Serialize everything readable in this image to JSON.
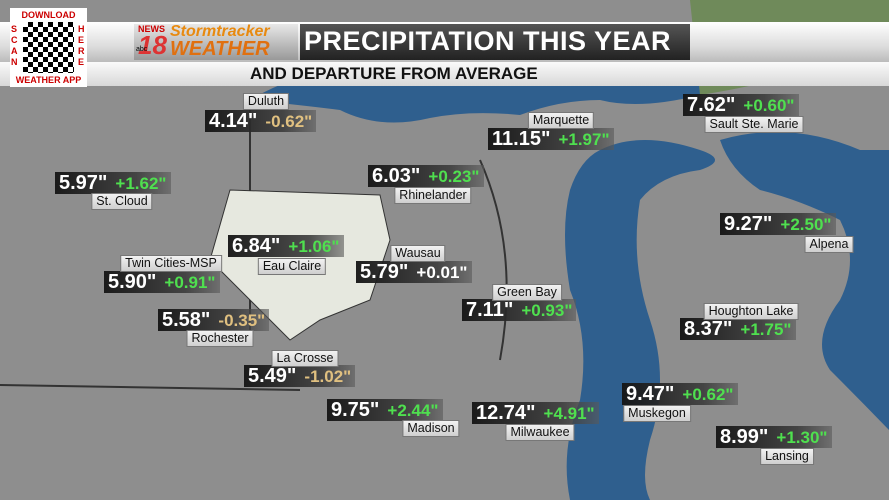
{
  "qr": {
    "top": "DOWNLOAD",
    "left": "SCAN",
    "right": "HERE",
    "bottom": "WEATHER APP"
  },
  "logo": {
    "news": "NEWS",
    "number": "18",
    "network": "abc",
    "brand": "Stormtracker",
    "weather": "WEATHER"
  },
  "header": {
    "title": "PRECIPITATION THIS YEAR",
    "subtitle": "AND DEPARTURE FROM AVERAGE"
  },
  "stations": [
    {
      "name": "Duluth",
      "precip": "4.14\"",
      "departure": "-0.62\""
    },
    {
      "name": "Marquette",
      "precip": "11.15\"",
      "departure": "+1.97\""
    },
    {
      "name": "Sault Ste. Marie",
      "precip": "7.62\"",
      "departure": "+0.60\""
    },
    {
      "name": "St. Cloud",
      "precip": "5.97\"",
      "departure": "+1.62\""
    },
    {
      "name": "Rhinelander",
      "precip": "6.03\"",
      "departure": "+0.23\""
    },
    {
      "name": "Alpena",
      "precip": "9.27\"",
      "departure": "+2.50\""
    },
    {
      "name": "Eau Claire",
      "precip": "6.84\"",
      "departure": "+1.06\""
    },
    {
      "name": "Wausau",
      "precip": "5.79\"",
      "departure": "+0.01\""
    },
    {
      "name": "Twin Cities-MSP",
      "precip": "5.90\"",
      "departure": "+0.91\""
    },
    {
      "name": "Green Bay",
      "precip": "7.11\"",
      "departure": "+0.93\""
    },
    {
      "name": "Houghton Lake",
      "precip": "8.37\"",
      "departure": "+1.75\""
    },
    {
      "name": "Rochester",
      "precip": "5.58\"",
      "departure": "-0.35\""
    },
    {
      "name": "La Crosse",
      "precip": "5.49\"",
      "departure": "-1.02\""
    },
    {
      "name": "Muskegon",
      "precip": "9.47\"",
      "departure": "+0.62\""
    },
    {
      "name": "Madison",
      "precip": "9.75\"",
      "departure": "+2.44\""
    },
    {
      "name": "Milwaukee",
      "precip": "12.74\"",
      "departure": "+4.91\""
    },
    {
      "name": "Lansing",
      "precip": "8.99\"",
      "departure": "+1.30\""
    }
  ]
}
